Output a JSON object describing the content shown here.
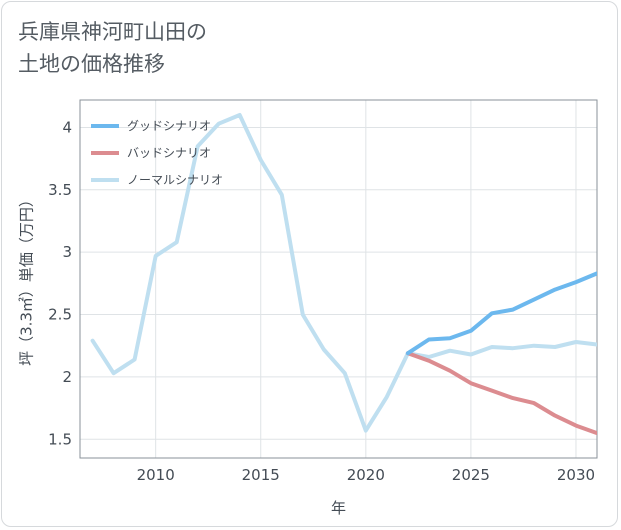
{
  "header": {
    "title": "兵庫県神河町山田の\n土地の価格推移"
  },
  "chart_data": {
    "type": "line",
    "title": "兵庫県神河町山田の土地の価格推移",
    "xlabel": "年",
    "ylabel": "坪（3.3㎡）単価（万円）",
    "xlim": [
      2006.4,
      2031
    ],
    "ylim": [
      1.35,
      4.22
    ],
    "xticks": [
      2010,
      2015,
      2020,
      2025,
      2030
    ],
    "xtick_labels": [
      "2010",
      "2015",
      "2020",
      "2025",
      "2030"
    ],
    "yticks": [
      1.5,
      2,
      2.5,
      3,
      3.5,
      4
    ],
    "ytick_labels": [
      "1.5",
      "2",
      "2.5",
      "3",
      "3.5",
      "4"
    ],
    "grid": true,
    "legend_position": "top-left",
    "series": [
      {
        "name": "グッドシナリオ",
        "color": "#6cb8ee",
        "x": [
          2022,
          2023,
          2024,
          2025,
          2026,
          2027,
          2028,
          2029,
          2030,
          2031
        ],
        "y": [
          2.19,
          2.3,
          2.31,
          2.37,
          2.51,
          2.54,
          2.62,
          2.7,
          2.76,
          2.83
        ]
      },
      {
        "name": "バッドシナリオ",
        "color": "#dc8c90",
        "x": [
          2022,
          2023,
          2024,
          2025,
          2026,
          2027,
          2028,
          2029,
          2030,
          2031
        ],
        "y": [
          2.19,
          2.13,
          2.05,
          1.95,
          1.89,
          1.83,
          1.79,
          1.69,
          1.61,
          1.55
        ]
      },
      {
        "name": "ノーマルシナリオ",
        "color": "#bfdff0",
        "x": [
          2007,
          2008,
          2009,
          2010,
          2011,
          2012,
          2013,
          2014,
          2015,
          2016,
          2017,
          2018,
          2019,
          2020,
          2021,
          2022,
          2023,
          2024,
          2025,
          2026,
          2027,
          2028,
          2029,
          2030,
          2031
        ],
        "y": [
          2.29,
          2.03,
          2.14,
          2.97,
          3.08,
          3.85,
          4.03,
          4.1,
          3.74,
          3.46,
          2.5,
          2.22,
          2.03,
          1.57,
          1.84,
          2.19,
          2.16,
          2.21,
          2.18,
          2.24,
          2.23,
          2.25,
          2.24,
          2.28,
          2.26
        ]
      }
    ]
  }
}
